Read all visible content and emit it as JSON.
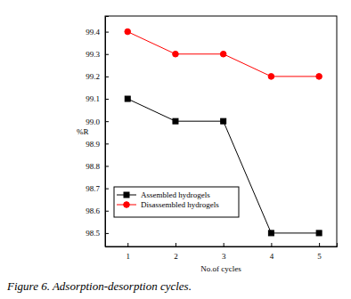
{
  "chart_data": {
    "type": "line",
    "title": "Figure 6. Adsorption-desorption cycles.",
    "x_label": "No.of cycles",
    "y_label": "%R",
    "x": [
      1,
      2,
      3,
      4,
      5
    ],
    "xlim": [
      0.53,
      5.37
    ],
    "xticks": [
      1,
      2,
      3,
      4,
      5
    ],
    "ylim": [
      98.44,
      99.47
    ],
    "yticks": [
      98.5,
      98.6,
      98.7,
      98.8,
      98.9,
      {
        "value": 99,
        "label": "99.0"
      },
      99.1,
      99.2,
      99.3,
      99.4
    ],
    "grid": false,
    "legend": "lower left",
    "series": [
      {
        "name": "Assembled hydrogels",
        "color": "#000000",
        "marker": "square",
        "line_style": "solid",
        "values": [
          99.1,
          99.0,
          99.0,
          98.5,
          98.5
        ]
      },
      {
        "name": "Disassembled hydrogels",
        "color": "#ff0000",
        "marker": "circle",
        "line_style": "solid",
        "values": [
          99.4,
          99.3,
          99.3,
          99.2,
          99.2
        ]
      }
    ]
  }
}
